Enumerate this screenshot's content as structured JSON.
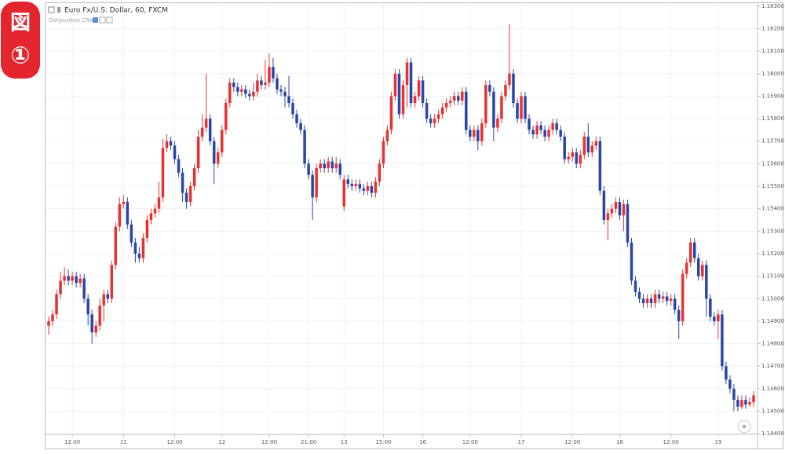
{
  "chart_data": {
    "type": "candlestick",
    "title": "Euro Fx/U.S. Dollar, 60, FXCM",
    "subtitle": "Dotjounkan CRA",
    "annotations": [
      "図",
      "①"
    ],
    "scroll_button": "»",
    "up_color": "#e8322f",
    "down_color": "#2946a8",
    "grid": true,
    "ylim": [
      1.14397,
      1.1631
    ],
    "yticks": [
      {
        "value": 1.144,
        "label": "1.14400"
      },
      {
        "value": 1.145,
        "label": "1.14500"
      },
      {
        "value": 1.146,
        "label": "1.14600"
      },
      {
        "value": 1.147,
        "label": "1.14700"
      },
      {
        "value": 1.148,
        "label": "1.14800"
      },
      {
        "value": 1.149,
        "label": "1.14900"
      },
      {
        "value": 1.15,
        "label": "1.15000"
      },
      {
        "value": 1.151,
        "label": "1.15100"
      },
      {
        "value": 1.152,
        "label": "1.15200"
      },
      {
        "value": 1.153,
        "label": "1.15300"
      },
      {
        "value": 1.154,
        "label": "1.15400"
      },
      {
        "value": 1.155,
        "label": "1.15500"
      },
      {
        "value": 1.156,
        "label": "1.15600"
      },
      {
        "value": 1.157,
        "label": "1.15700"
      },
      {
        "value": 1.158,
        "label": "1.15800"
      },
      {
        "value": 1.159,
        "label": "1.15900"
      },
      {
        "value": 1.16,
        "label": "1.16000"
      },
      {
        "value": 1.161,
        "label": "1.16100"
      },
      {
        "value": 1.162,
        "label": "1.16200"
      },
      {
        "value": 1.163,
        "label": "1.16300"
      }
    ],
    "xticks": [
      {
        "value": 6,
        "label": "12:00"
      },
      {
        "value": 19,
        "label": "11"
      },
      {
        "value": 32,
        "label": "12:00"
      },
      {
        "value": 44,
        "label": "12"
      },
      {
        "value": 56,
        "label": "12:00"
      },
      {
        "value": 66,
        "label": "21:00"
      },
      {
        "value": 75,
        "label": "13"
      },
      {
        "value": 85,
        "label": "15:00"
      },
      {
        "value": 95,
        "label": "16"
      },
      {
        "value": 107,
        "label": "12:00"
      },
      {
        "value": 120,
        "label": "17"
      },
      {
        "value": 133,
        "label": "12:00"
      },
      {
        "value": 145,
        "label": "18"
      },
      {
        "value": 158,
        "label": "12:00"
      },
      {
        "value": 170,
        "label": "19"
      }
    ],
    "open": [
      1.1488,
      1.149,
      1.1493,
      1.1502,
      1.1508,
      1.151,
      1.1508,
      1.151,
      1.1507,
      1.1509,
      1.15,
      1.1493,
      1.1485,
      1.1488,
      1.1497,
      1.1502,
      1.15,
      1.1515,
      1.1532,
      1.1542,
      1.1543,
      1.1533,
      1.1525,
      1.152,
      1.1518,
      1.1527,
      1.1535,
      1.1538,
      1.154,
      1.1545,
      1.1567,
      1.157,
      1.1568,
      1.1562,
      1.1556,
      1.1547,
      1.1543,
      1.155,
      1.1558,
      1.1572,
      1.1576,
      1.158,
      1.157,
      1.156,
      1.1565,
      1.1575,
      1.1587,
      1.1596,
      1.1594,
      1.1592,
      1.1593,
      1.1591,
      1.159,
      1.1592,
      1.1597,
      1.1595,
      1.1596,
      1.1603,
      1.1598,
      1.1593,
      1.1592,
      1.159,
      1.1587,
      1.1582,
      1.1578,
      1.1575,
      1.156,
      1.1555,
      1.1545,
      1.1558,
      1.156,
      1.1558,
      1.1561,
      1.1558,
      1.156,
      1.1541,
      1.1553,
      1.1551,
      1.155,
      1.1551,
      1.1549,
      1.1548,
      1.155,
      1.1547,
      1.1552,
      1.156,
      1.157,
      1.1575,
      1.159,
      1.16,
      1.1582,
      1.1595,
      1.1605,
      1.1587,
      1.159,
      1.1597,
      1.1587,
      1.158,
      1.1578,
      1.158,
      1.1582,
      1.1585,
      1.1587,
      1.1588,
      1.159,
      1.1588,
      1.1592,
      1.1575,
      1.1572,
      1.1575,
      1.157,
      1.1578,
      1.1595,
      1.1592,
      1.1576,
      1.158,
      1.159,
      1.1595,
      1.16,
      1.1587,
      1.158,
      1.159,
      1.158,
      1.1575,
      1.1573,
      1.1577,
      1.1575,
      1.1572,
      1.1575,
      1.1578,
      1.1575,
      1.1572,
      1.1562,
      1.1563,
      1.1565,
      1.156,
      1.1564,
      1.1572,
      1.1565,
      1.1568,
      1.157,
      1.1548,
      1.1535,
      1.1538,
      1.154,
      1.1543,
      1.1537,
      1.1542,
      1.1525,
      1.1508,
      1.1503,
      1.15,
      1.1498,
      1.15,
      1.1498,
      1.1502,
      1.15,
      1.1501,
      1.1499,
      1.15,
      1.1495,
      1.149,
      1.1511,
      1.1516,
      1.1525,
      1.1518,
      1.151,
      1.1515,
      1.15,
      1.1492,
      1.149,
      1.1493,
      1.147,
      1.1464,
      1.146,
      1.1455,
      1.1452,
      1.1455,
      1.1453,
      1.1454
    ],
    "high": [
      1.1492,
      1.1495,
      1.1504,
      1.1512,
      1.1514,
      1.1513,
      1.1512,
      1.1512,
      1.1511,
      1.1511,
      1.1502,
      1.1495,
      1.149,
      1.15,
      1.1504,
      1.1504,
      1.1517,
      1.1534,
      1.1545,
      1.1546,
      1.1545,
      1.1535,
      1.1527,
      1.1523,
      1.1529,
      1.1537,
      1.154,
      1.1542,
      1.1552,
      1.1571,
      1.1573,
      1.1572,
      1.157,
      1.1564,
      1.1558,
      1.1549,
      1.1552,
      1.156,
      1.1575,
      1.1582,
      1.16,
      1.1582,
      1.1572,
      1.1567,
      1.1577,
      1.1589,
      1.1598,
      1.1598,
      1.1596,
      1.1595,
      1.1595,
      1.1593,
      1.1596,
      1.16,
      1.1599,
      1.1606,
      1.1609,
      1.1607,
      1.16,
      1.1595,
      1.1594,
      1.1599,
      1.1589,
      1.1584,
      1.158,
      1.1577,
      1.1562,
      1.1557,
      1.156,
      1.1562,
      1.1562,
      1.1563,
      1.1563,
      1.1563,
      1.1562,
      1.1555,
      1.1555,
      1.1553,
      1.1553,
      1.1553,
      1.1551,
      1.1552,
      1.1552,
      1.1554,
      1.1562,
      1.1572,
      1.1577,
      1.1592,
      1.1602,
      1.1602,
      1.1597,
      1.1607,
      1.1607,
      1.1592,
      1.1599,
      1.1599,
      1.1589,
      1.1582,
      1.1582,
      1.1584,
      1.1587,
      1.1589,
      1.159,
      1.1592,
      1.1592,
      1.1594,
      1.1594,
      1.1577,
      1.1577,
      1.1577,
      1.158,
      1.1597,
      1.1597,
      1.1594,
      1.1582,
      1.1592,
      1.1597,
      1.1622,
      1.1602,
      1.1589,
      1.1592,
      1.1592,
      1.1582,
      1.1577,
      1.1579,
      1.1579,
      1.1577,
      1.1577,
      1.158,
      1.158,
      1.1577,
      1.1574,
      1.1565,
      1.1567,
      1.1567,
      1.1566,
      1.1574,
      1.1578,
      1.157,
      1.1572,
      1.1572,
      1.155,
      1.154,
      1.1542,
      1.1545,
      1.1545,
      1.1544,
      1.1544,
      1.1527,
      1.151,
      1.1505,
      1.1502,
      1.1502,
      1.1502,
      1.1504,
      1.1504,
      1.1503,
      1.1503,
      1.1502,
      1.1502,
      1.1497,
      1.1513,
      1.1518,
      1.1527,
      1.1527,
      1.152,
      1.1517,
      1.1517,
      1.1502,
      1.1494,
      1.1495,
      1.1495,
      1.1472,
      1.1466,
      1.1462,
      1.1457,
      1.1457,
      1.1457,
      1.1456,
      1.1459
    ],
    "low": [
      1.1484,
      1.1488,
      1.1491,
      1.15,
      1.1506,
      1.1506,
      1.1506,
      1.1505,
      1.1505,
      1.1498,
      1.1488,
      1.148,
      1.1483,
      1.1486,
      1.149,
      1.1498,
      1.1498,
      1.1513,
      1.153,
      1.154,
      1.1531,
      1.1523,
      1.1516,
      1.1516,
      1.1516,
      1.1525,
      1.1533,
      1.1536,
      1.1538,
      1.1543,
      1.1565,
      1.1566,
      1.156,
      1.1554,
      1.1543,
      1.154,
      1.1541,
      1.1548,
      1.1556,
      1.157,
      1.1574,
      1.1568,
      1.1551,
      1.1558,
      1.1563,
      1.1573,
      1.1585,
      1.1592,
      1.159,
      1.159,
      1.1589,
      1.1588,
      1.1588,
      1.159,
      1.1593,
      1.1593,
      1.1594,
      1.1596,
      1.1591,
      1.159,
      1.1585,
      1.1585,
      1.158,
      1.1576,
      1.1573,
      1.1558,
      1.1553,
      1.1535,
      1.1543,
      1.1556,
      1.1556,
      1.1556,
      1.1556,
      1.1556,
      1.1553,
      1.1539,
      1.1549,
      1.1548,
      1.1548,
      1.1547,
      1.1546,
      1.1546,
      1.1545,
      1.1545,
      1.155,
      1.1558,
      1.1568,
      1.1573,
      1.1588,
      1.158,
      1.158,
      1.1585,
      1.1585,
      1.1585,
      1.1588,
      1.1585,
      1.1578,
      1.1576,
      1.1576,
      1.1578,
      1.158,
      1.1583,
      1.1585,
      1.1586,
      1.1586,
      1.1586,
      1.1573,
      1.157,
      1.157,
      1.1566,
      1.1568,
      1.1576,
      1.159,
      1.157,
      1.1574,
      1.1578,
      1.1588,
      1.1593,
      1.1585,
      1.1578,
      1.1578,
      1.1578,
      1.1573,
      1.1571,
      1.1571,
      1.1573,
      1.157,
      1.157,
      1.1573,
      1.1573,
      1.157,
      1.156,
      1.156,
      1.1561,
      1.1558,
      1.1558,
      1.1562,
      1.1563,
      1.1563,
      1.1566,
      1.1546,
      1.1533,
      1.1526,
      1.1536,
      1.1538,
      1.1535,
      1.153,
      1.1523,
      1.1506,
      1.1501,
      1.1498,
      1.1496,
      1.1496,
      1.1496,
      1.1496,
      1.1498,
      1.1498,
      1.1497,
      1.1497,
      1.1493,
      1.1482,
      1.1488,
      1.1509,
      1.1514,
      1.1516,
      1.1508,
      1.1508,
      1.1492,
      1.149,
      1.1488,
      1.1482,
      1.1468,
      1.1462,
      1.1458,
      1.145,
      1.145,
      1.1451,
      1.1451,
      1.1452,
      1.1452
    ],
    "close": [
      1.149,
      1.1493,
      1.1502,
      1.1508,
      1.151,
      1.1508,
      1.151,
      1.1507,
      1.1509,
      1.15,
      1.1493,
      1.1485,
      1.1488,
      1.1497,
      1.1502,
      1.15,
      1.1515,
      1.1532,
      1.1542,
      1.1543,
      1.1533,
      1.1525,
      1.152,
      1.1518,
      1.1527,
      1.1535,
      1.1538,
      1.154,
      1.1545,
      1.1567,
      1.157,
      1.1568,
      1.1562,
      1.1556,
      1.1547,
      1.1543,
      1.155,
      1.1558,
      1.1572,
      1.1576,
      1.158,
      1.157,
      1.156,
      1.1565,
      1.1575,
      1.1587,
      1.1596,
      1.1594,
      1.1592,
      1.1593,
      1.1591,
      1.159,
      1.1592,
      1.1597,
      1.1595,
      1.1596,
      1.1603,
      1.1598,
      1.1593,
      1.1592,
      1.159,
      1.1587,
      1.1582,
      1.1578,
      1.1575,
      1.156,
      1.1555,
      1.1545,
      1.1558,
      1.156,
      1.1558,
      1.1561,
      1.1558,
      1.156,
      1.1555,
      1.1553,
      1.1551,
      1.155,
      1.1551,
      1.1549,
      1.1548,
      1.155,
      1.1547,
      1.1552,
      1.156,
      1.157,
      1.1575,
      1.159,
      1.16,
      1.1582,
      1.1595,
      1.1605,
      1.1587,
      1.159,
      1.1597,
      1.1587,
      1.158,
      1.1578,
      1.158,
      1.1582,
      1.1585,
      1.1587,
      1.1588,
      1.159,
      1.1588,
      1.1592,
      1.1575,
      1.1572,
      1.1575,
      1.157,
      1.1578,
      1.1595,
      1.1592,
      1.1576,
      1.158,
      1.159,
      1.1595,
      1.16,
      1.1587,
      1.158,
      1.159,
      1.158,
      1.1575,
      1.1573,
      1.1577,
      1.1575,
      1.1572,
      1.1575,
      1.1578,
      1.1575,
      1.1572,
      1.1562,
      1.1563,
      1.1565,
      1.156,
      1.1564,
      1.1572,
      1.1565,
      1.1568,
      1.157,
      1.1548,
      1.1535,
      1.1538,
      1.154,
      1.1543,
      1.1537,
      1.1542,
      1.1525,
      1.1508,
      1.1503,
      1.15,
      1.1498,
      1.15,
      1.1498,
      1.1502,
      1.15,
      1.1501,
      1.1499,
      1.15,
      1.1495,
      1.149,
      1.1511,
      1.1516,
      1.1525,
      1.1518,
      1.151,
      1.1515,
      1.15,
      1.1492,
      1.149,
      1.1493,
      1.147,
      1.1464,
      1.146,
      1.1455,
      1.1452,
      1.1455,
      1.1453,
      1.1454,
      1.1457
    ]
  }
}
